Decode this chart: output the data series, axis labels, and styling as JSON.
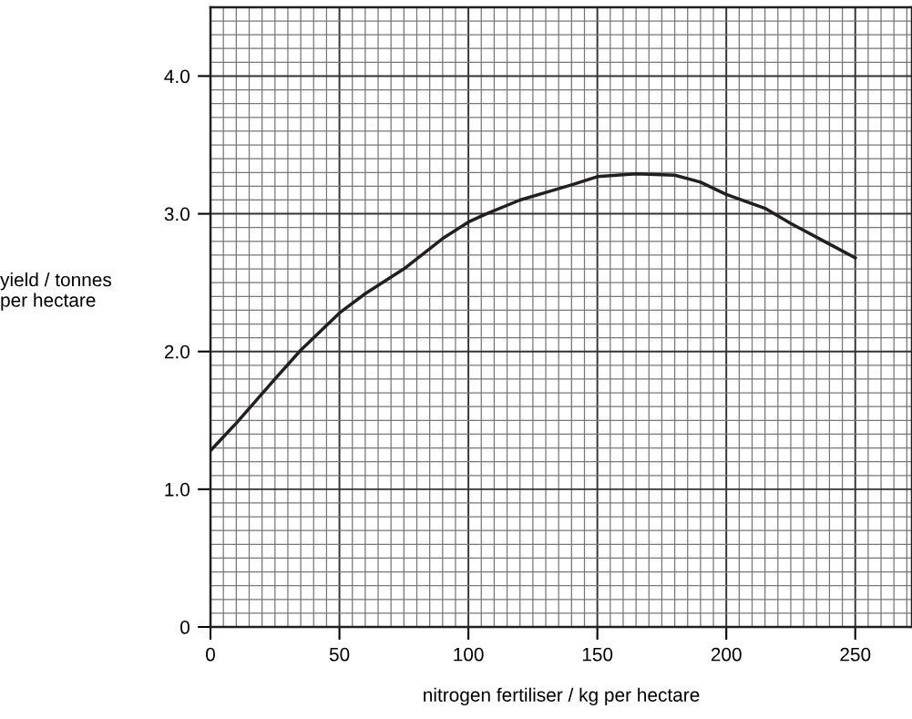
{
  "chart_data": {
    "type": "line",
    "xlabel": "nitrogen fertiliser / kg per hectare",
    "ylabel": "yield / tonnes\nper hectare",
    "x": [
      0,
      10,
      25,
      35,
      50,
      60,
      75,
      90,
      100,
      107,
      120,
      131,
      140,
      150,
      165,
      180,
      190,
      200,
      215,
      225,
      240,
      250
    ],
    "series": [
      {
        "color": "#231f20",
        "values": [
          1.28,
          1.48,
          1.8,
          2.01,
          2.28,
          2.42,
          2.6,
          2.82,
          2.94,
          3.0,
          3.1,
          3.16,
          3.21,
          3.27,
          3.29,
          3.28,
          3.23,
          3.14,
          3.04,
          2.93,
          2.78,
          2.68
        ]
      }
    ],
    "xlim": [
      0,
      272
    ],
    "ylim": [
      0,
      4.5
    ],
    "xticks": [
      0,
      50,
      100,
      150,
      200,
      250
    ],
    "yticks": [
      0,
      {
        "value": 1,
        "label": "1.0"
      },
      {
        "value": 2,
        "label": "2.0"
      },
      {
        "value": 3,
        "label": "3.0"
      },
      {
        "value": 4,
        "label": "4.0"
      }
    ],
    "grid": true
  }
}
